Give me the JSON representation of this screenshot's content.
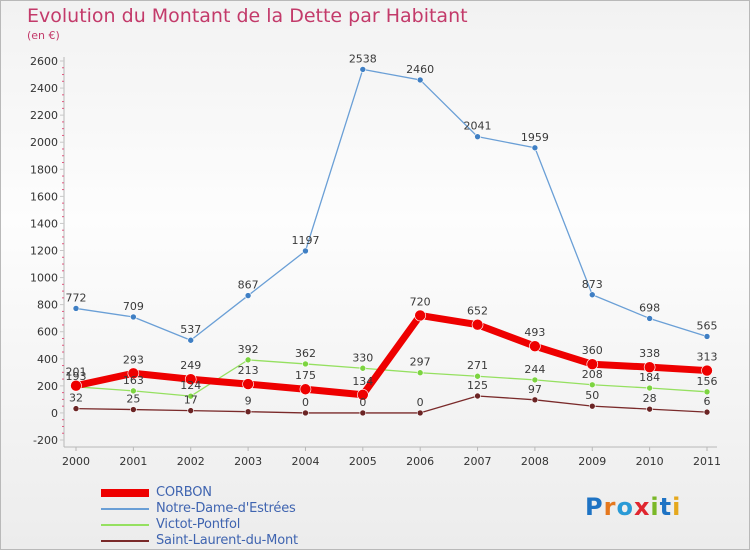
{
  "title": "Evolution du Montant de la Dette par Habitant",
  "subtitle": "(en €)",
  "logo": {
    "text": "Proxiti",
    "letter_colors": [
      "#1e73c4",
      "#e5781e",
      "#2a9ad6",
      "#e0262f",
      "#7ab828",
      "#1e73c4",
      "#e5a81e"
    ]
  },
  "chart_data": {
    "type": "line",
    "title": "Evolution du Montant de la Dette par Habitant",
    "ylabel": "(en €)",
    "xlabel": "",
    "x": [
      "2000",
      "2001",
      "2002",
      "2003",
      "2004",
      "2005",
      "2006",
      "2007",
      "2008",
      "2009",
      "2010",
      "2011"
    ],
    "ylim": [
      -200,
      2600
    ],
    "yticks": [
      -200,
      0,
      200,
      400,
      600,
      800,
      1000,
      1200,
      1400,
      1600,
      1800,
      2000,
      2200,
      2400,
      2600
    ],
    "grid": false,
    "legend": "bottom-left",
    "series": [
      {
        "name": "CORBON",
        "color": "#ee0000",
        "values": [
          201,
          293,
          249,
          213,
          175,
          134,
          720,
          652,
          493,
          360,
          338,
          313
        ]
      },
      {
        "name": "Notre-Dame-d'Estrées",
        "color": "#6a9fd6",
        "values": [
          772,
          709,
          537,
          867,
          1197,
          2538,
          2460,
          2041,
          1959,
          873,
          698,
          565
        ]
      },
      {
        "name": "Victot-Pontfol",
        "color": "#95e060",
        "values": [
          193,
          163,
          124,
          392,
          362,
          330,
          297,
          271,
          244,
          208,
          184,
          156
        ]
      },
      {
        "name": "Saint-Laurent-du-Mont",
        "color": "#7a2a2a",
        "values": [
          32,
          25,
          17,
          9,
          0,
          0,
          0,
          125,
          97,
          50,
          28,
          6
        ]
      }
    ]
  }
}
